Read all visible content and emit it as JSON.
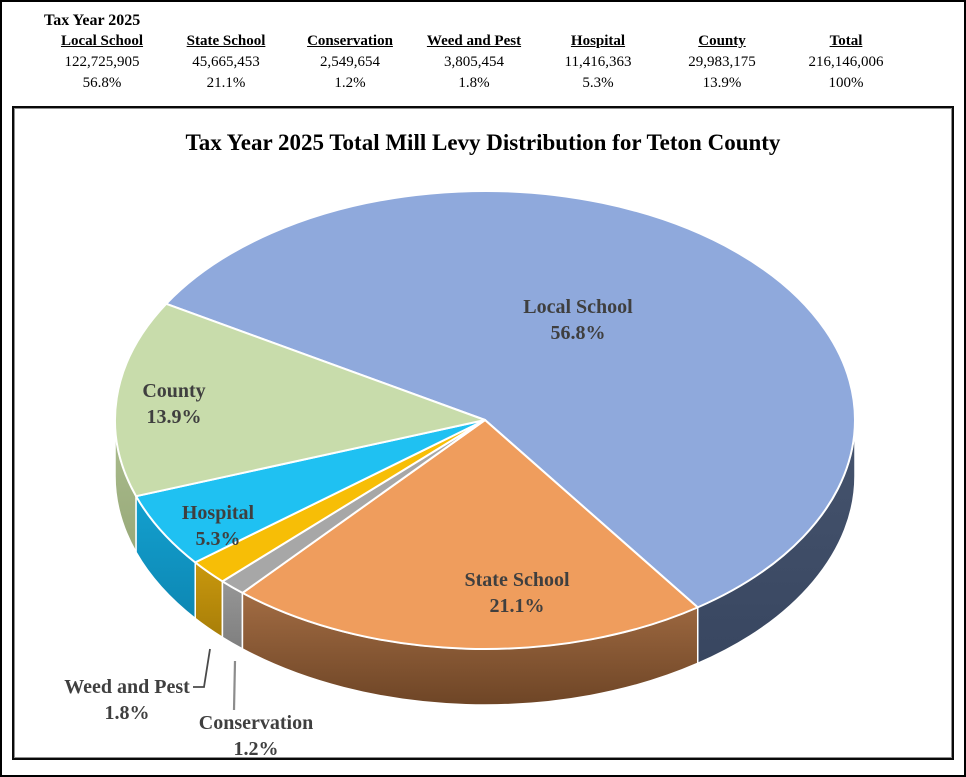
{
  "table": {
    "caption": "Tax Year 2025",
    "columns": [
      {
        "header": "Local School",
        "value": "122,725,905",
        "pct": "56.8%"
      },
      {
        "header": "State School",
        "value": "45,665,453",
        "pct": "21.1%"
      },
      {
        "header": "Conservation",
        "value": "2,549,654",
        "pct": "1.2%"
      },
      {
        "header": "Weed and Pest",
        "value": "3,805,454",
        "pct": "1.8%"
      },
      {
        "header": "Hospital",
        "value": "11,416,363",
        "pct": "5.3%"
      },
      {
        "header": "County",
        "value": "29,983,175",
        "pct": "13.9%"
      },
      {
        "header": "Total",
        "value": "216,146,006",
        "pct": "100%"
      }
    ]
  },
  "chart_data": {
    "type": "pie",
    "style": "3d",
    "title": "Tax Year 2025 Total Mill Levy Distribution for Teton County",
    "start_angle_deg_clockwise_from_top": 300.5,
    "direction": "clockwise",
    "total": 216146006,
    "slices": [
      {
        "label": "Local School",
        "pct_label": "56.8%",
        "value": 122725905,
        "pct": 56.8,
        "color": "#8FA9DC",
        "side_top": "#46546E",
        "side_bottom": "#384660"
      },
      {
        "label": "State School",
        "pct_label": "21.1%",
        "value": 45665453,
        "pct": 21.1,
        "color": "#EF9D5D",
        "side_top": "#A26C43",
        "side_bottom": "#6E4526"
      },
      {
        "label": "Conservation",
        "pct_label": "1.2%",
        "value": 2549654,
        "pct": 1.2,
        "color": "#A7A7A7",
        "side_top": "#969696",
        "side_bottom": "#7F7F7F"
      },
      {
        "label": "Weed and Pest",
        "pct_label": "1.8%",
        "value": 3805454,
        "pct": 1.8,
        "color": "#F7BE06",
        "side_top": "#C9980E",
        "side_bottom": "#A87E08"
      },
      {
        "label": "Hospital",
        "pct_label": "5.3%",
        "value": 11416363,
        "pct": 5.3,
        "color": "#1FC1F2",
        "side_top": "#13A0CF",
        "side_bottom": "#0D87B3"
      },
      {
        "label": "County",
        "pct_label": "13.9%",
        "value": 29983175,
        "pct": 13.9,
        "color": "#C8DCAB",
        "side_top": "#ABBD8E",
        "side_bottom": "#98A979"
      }
    ],
    "label_text_color": "#3f3f3f",
    "slice_border_color": "#ffffff",
    "legend": "none"
  }
}
